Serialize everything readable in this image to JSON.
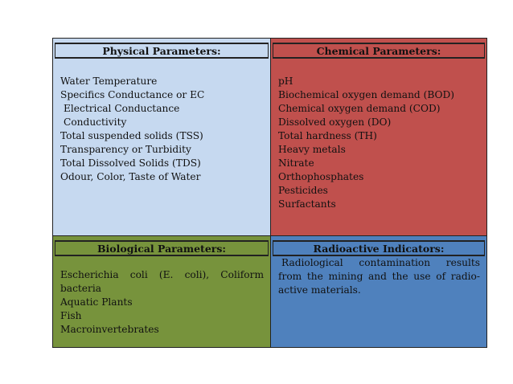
{
  "physical": {
    "title": "Physical Parameters:",
    "items": [
      "Water Temperature",
      "Specifics Conductance or EC",
      "Electrical Conductance",
      "Conductivity",
      "Total suspended solids (TSS)",
      "Transparency or Turbidity",
      "Total Dissolved Solids (TDS)",
      "Odour, Color, Taste of Water"
    ]
  },
  "chemical": {
    "title": "Chemical Parameters:",
    "items": [
      "pH",
      "Biochemical oxygen demand (BOD)",
      "Chemical oxygen demand (COD)",
      "Dissolved oxygen (DO)",
      "Total hardness (TH)",
      "Heavy metals",
      "Nitrate",
      "Orthophosphates",
      "Pesticides",
      "Surfactants"
    ]
  },
  "biological": {
    "title": "Biological Parameters:",
    "items": [
      "Escherichia coli (E. coli), Coliform bacteria",
      "Aquatic Plants",
      "Fish",
      "Macroinvertebrates"
    ]
  },
  "radioactive": {
    "title": "Radioactive Indicators:",
    "text": "Radiological contamination results from the mining and the use of radio-active materials."
  },
  "colors": {
    "physical": "#c6d9f0",
    "chemical": "#c0504d",
    "biological": "#77933c",
    "radioactive": "#4f81bd"
  }
}
